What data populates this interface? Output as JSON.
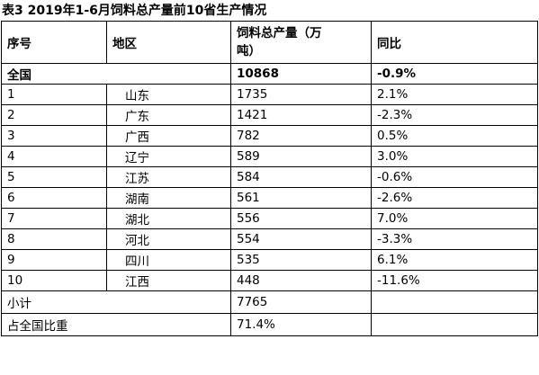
{
  "caption": "表3 2019年1-6月饲料总产量前10省生产情况",
  "headers": {
    "seq": "序号",
    "region": "地区",
    "output": "饲料总产量（万吨）",
    "yoy": "同比"
  },
  "national": {
    "label": "全国",
    "output": "10868",
    "yoy": "-0.9%"
  },
  "rows": [
    {
      "seq": "1",
      "region": "山东",
      "output": "1735",
      "yoy": "2.1%"
    },
    {
      "seq": "2",
      "region": "广东",
      "output": "1421",
      "yoy": "-2.3%"
    },
    {
      "seq": "3",
      "region": "广西",
      "output": "782",
      "yoy": "0.5%"
    },
    {
      "seq": "4",
      "region": "辽宁",
      "output": "589",
      "yoy": "3.0%"
    },
    {
      "seq": "5",
      "region": "江苏",
      "output": "584",
      "yoy": "-0.6%"
    },
    {
      "seq": "6",
      "region": "湖南",
      "output": "561",
      "yoy": "-2.6%"
    },
    {
      "seq": "7",
      "region": "湖北",
      "output": "556",
      "yoy": "7.0%"
    },
    {
      "seq": "8",
      "region": "河北",
      "output": "554",
      "yoy": "-3.3%"
    },
    {
      "seq": "9",
      "region": "四川",
      "output": "535",
      "yoy": "6.1%"
    },
    {
      "seq": "10",
      "region": "江西",
      "output": "448",
      "yoy": "-11.6%"
    }
  ],
  "subtotal": {
    "label": "小计",
    "output": "7765"
  },
  "share": {
    "label": "占全国比重",
    "output": "71.4%"
  }
}
